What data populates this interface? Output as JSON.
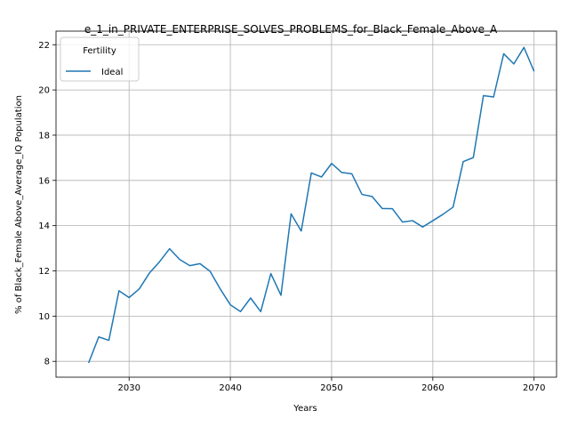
{
  "chart_data": {
    "type": "line",
    "title": "e_1_in_PRIVATE_ENTERPRISE_SOLVES_PROBLEMS_for_Black_Female_Above_A",
    "xlabel": "Years",
    "ylabel": "% of Black_Female Above_Average_IQ Population",
    "xlim": [
      2022.78,
      2072.22
    ],
    "ylim": [
      7.3,
      22.6
    ],
    "xticks": [
      2030,
      2040,
      2050,
      2060,
      2070
    ],
    "yticks": [
      8,
      10,
      12,
      14,
      16,
      18,
      20,
      22
    ],
    "grid": true,
    "legend": {
      "title": "Fertility",
      "placement": "upper-left"
    },
    "series": [
      {
        "name": "Ideal",
        "color": "#1f77b4",
        "x": [
          2026,
          2027,
          2028,
          2029,
          2030,
          2031,
          2032,
          2033,
          2034,
          2035,
          2036,
          2037,
          2038,
          2039,
          2040,
          2041,
          2042,
          2043,
          2044,
          2045,
          2046,
          2047,
          2048,
          2049,
          2050,
          2051,
          2052,
          2053,
          2054,
          2055,
          2056,
          2057,
          2058,
          2059,
          2060,
          2061,
          2062,
          2063,
          2064,
          2065,
          2066,
          2067,
          2068,
          2069,
          2070
        ],
        "values": [
          7.93,
          9.08,
          8.93,
          11.12,
          10.82,
          11.2,
          11.9,
          12.4,
          12.98,
          12.5,
          12.23,
          12.32,
          11.98,
          11.2,
          10.5,
          10.2,
          10.8,
          10.2,
          11.88,
          10.92,
          14.52,
          13.76,
          16.33,
          16.15,
          16.75,
          16.35,
          16.29,
          15.38,
          15.29,
          14.76,
          14.75,
          14.16,
          14.22,
          13.94,
          14.22,
          14.5,
          14.82,
          16.83,
          17.01,
          19.75,
          19.69,
          21.6,
          21.15,
          21.88,
          20.82
        ]
      }
    ]
  }
}
